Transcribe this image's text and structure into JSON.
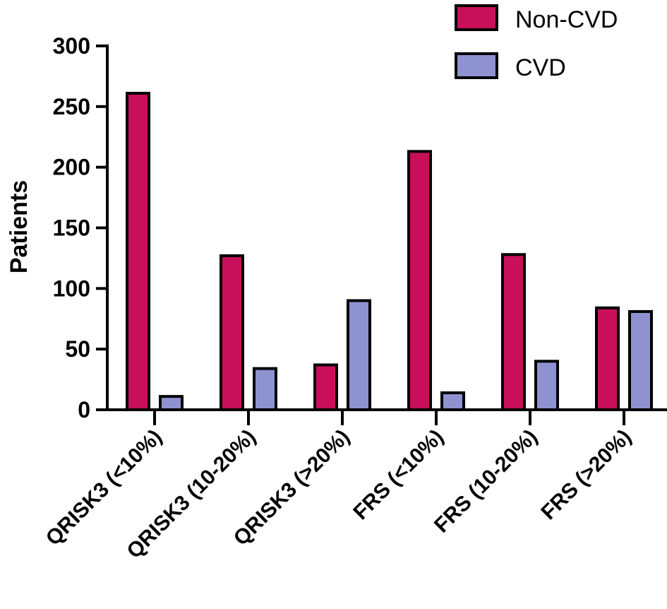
{
  "chart_data": {
    "type": "bar",
    "title": "",
    "xlabel": "",
    "ylabel": "Patients",
    "ylim": [
      0,
      300
    ],
    "yticks": [
      0,
      50,
      100,
      150,
      200,
      250,
      300
    ],
    "categories": [
      "QRISK3 (<10%)",
      "QRISK3 (10-20%)",
      "QRISK3 (>20%)",
      "FRS (<10%)",
      "FRS (10-20%)",
      "FRS (>20%)"
    ],
    "series": [
      {
        "name": "Non-CVD",
        "color": "#C8105A",
        "values": [
          261,
          127,
          37,
          213,
          128,
          84
        ]
      },
      {
        "name": "CVD",
        "color": "#8E92D0",
        "values": [
          11,
          34,
          90,
          14,
          40,
          81
        ]
      }
    ],
    "legend_position": "top-right",
    "grid": false
  }
}
